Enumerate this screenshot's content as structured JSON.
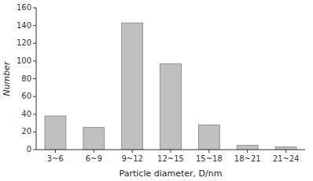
{
  "chart_data": {
    "type": "bar",
    "categories": [
      "3~6",
      "6~9",
      "9~12",
      "12~15",
      "15~18",
      "18~21",
      "21~24"
    ],
    "values": [
      38,
      25,
      143,
      97,
      28,
      5,
      3
    ],
    "color": "#c0c0c0",
    "xlabel": "Particle diameter, D/nm",
    "ylabel": "Number",
    "ylim": [
      0,
      160
    ],
    "yticks": [
      0,
      20,
      40,
      60,
      80,
      100,
      120,
      140,
      160
    ],
    "grid": false
  }
}
